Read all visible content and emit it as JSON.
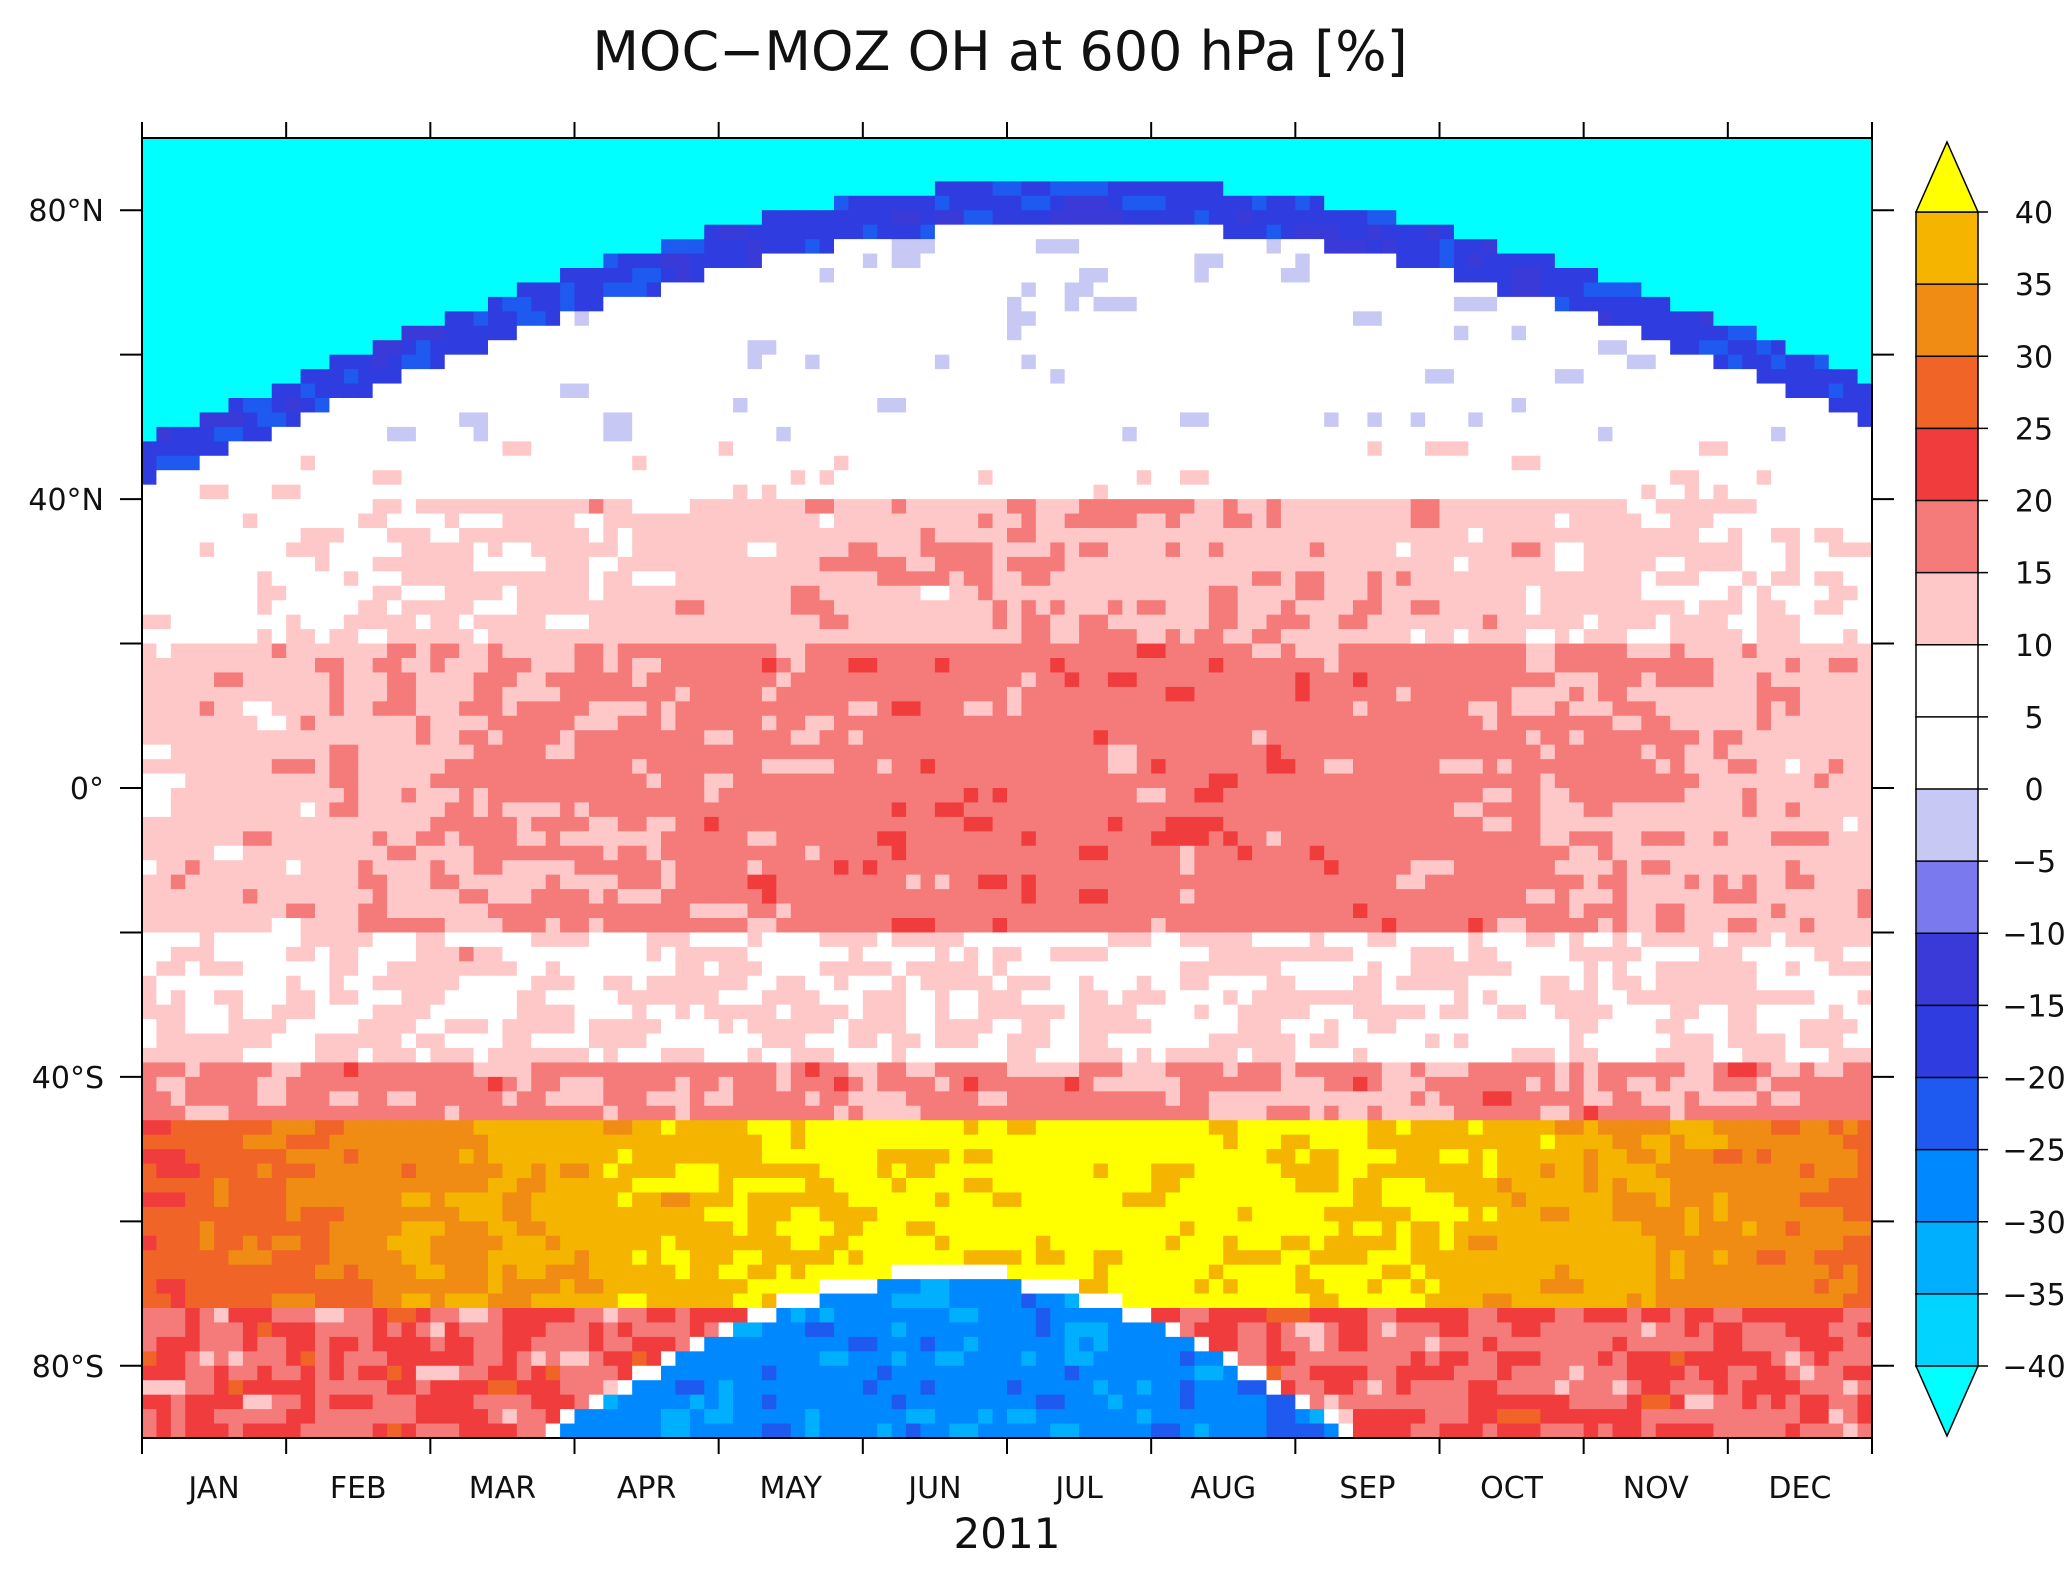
{
  "chart_data": {
    "type": "heatmap",
    "title": "MOC−MOZ OH at 600 hPa [%]",
    "xlabel": "2011",
    "ylabel": "",
    "x_tick_labels": [
      "JAN",
      "FEB",
      "MAR",
      "APR",
      "MAY",
      "JUN",
      "JUL",
      "AUG",
      "SEP",
      "OCT",
      "NOV",
      "DEC"
    ],
    "y_ticks": [
      {
        "value": 80,
        "label": "80°N"
      },
      {
        "value": 40,
        "label": "40°N"
      },
      {
        "value": 0,
        "label": "0°"
      },
      {
        "value": -40,
        "label": "40°S"
      },
      {
        "value": -80,
        "label": "80°S"
      }
    ],
    "y_minor_ticks": [
      60,
      20,
      -20,
      -60
    ],
    "ylim": [
      -90,
      90
    ],
    "xlim_months": [
      0,
      12
    ],
    "colorbar": {
      "levels": [
        -40,
        -35,
        -30,
        -25,
        -20,
        -15,
        -10,
        -5,
        0,
        5,
        10,
        15,
        20,
        25,
        30,
        35,
        40
      ],
      "labels": [
        "−40",
        "−35",
        "−30",
        "−25",
        "−20",
        "−15",
        "−10",
        "−5",
        "0",
        "5",
        "10",
        "15",
        "20",
        "25",
        "30",
        "35",
        "40"
      ],
      "colors": [
        "#00ffff",
        "#00d4ff",
        "#00b0ff",
        "#0088ff",
        "#1e5af0",
        "#2f3ce0",
        "#3a3ad8",
        "#7a7aee",
        "#c8c8f5",
        "#ffffff",
        "#ffffff",
        "#ffc8c8",
        "#f57a7a",
        "#f03c3c",
        "#f06428",
        "#f08c14",
        "#f5b400",
        "#f5d200",
        "#ffff00"
      ],
      "extend": "both"
    },
    "fields": {
      "description_free": true,
      "month_centers": [
        0.5,
        1.5,
        2.5,
        3.5,
        4.5,
        5.5,
        6.5,
        7.5,
        8.5,
        9.5,
        10.5,
        11.5
      ]
    }
  }
}
